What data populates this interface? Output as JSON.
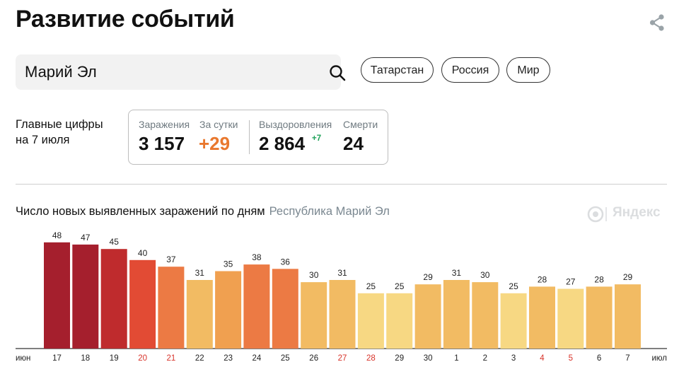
{
  "header": {
    "title": "Развитие событий",
    "share_icon": "share-icon"
  },
  "search": {
    "value": "Марий Эл",
    "placeholder": "",
    "icon": "search-icon"
  },
  "region_pills": [
    "Татарстан",
    "Россия",
    "Мир"
  ],
  "summary": {
    "label_line1": "Главные цифры",
    "label_line2": "на 7 июля",
    "infections_label": "Заражения",
    "infections_value": "3 157",
    "per_day_label": "За сутки",
    "per_day_value": "+29",
    "recoveries_label": "Выздоровления",
    "recoveries_value": "2 864",
    "recoveries_delta": "+7",
    "deaths_label": "Смерти",
    "deaths_value": "24"
  },
  "watermark": {
    "text": "Яндекс"
  },
  "colors": {
    "accent_orange": "#e9782e",
    "accent_green": "#1fa25a",
    "weekend_red": "#d8332a"
  },
  "chart_data": {
    "type": "bar",
    "title": "Число новых выявленных заражений по дням",
    "subtitle": "Республика Марий Эл",
    "start_month_label": "июн",
    "end_month_label": "июл",
    "categories": [
      "17",
      "18",
      "19",
      "20",
      "21",
      "22",
      "23",
      "24",
      "25",
      "26",
      "27",
      "28",
      "29",
      "30",
      "1",
      "2",
      "3",
      "4",
      "5",
      "6",
      "7"
    ],
    "values": [
      48,
      47,
      45,
      40,
      37,
      31,
      35,
      38,
      36,
      30,
      31,
      25,
      25,
      29,
      31,
      30,
      25,
      28,
      27,
      28,
      29
    ],
    "weekend_categories": [
      "20",
      "21",
      "27",
      "28",
      "4",
      "5"
    ],
    "ylim": [
      0,
      50
    ],
    "grid": false,
    "legend": "none",
    "color_scale": [
      {
        "min": 46,
        "color": "#a51f2d"
      },
      {
        "min": 42,
        "color": "#bf2b2d"
      },
      {
        "min": 39,
        "color": "#e24b34"
      },
      {
        "min": 36,
        "color": "#ec7a44"
      },
      {
        "min": 32,
        "color": "#f0a050"
      },
      {
        "min": 28,
        "color": "#f2bb63"
      },
      {
        "min": 0,
        "color": "#f7d883"
      }
    ]
  }
}
